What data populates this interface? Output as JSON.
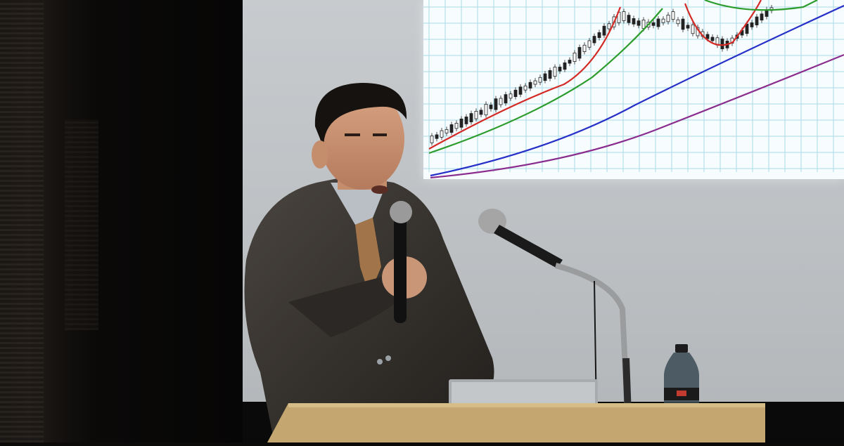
{
  "scene": {
    "description_free": true
  },
  "projection": {
    "grid": true,
    "series_colors": {
      "candles": "#222222",
      "ma_short": "#d42a25",
      "ma_medium": "#2c9c2c",
      "ma_long": "#2630c8",
      "ma_very_long": "#8a2c8e"
    }
  },
  "icons": {
    "microphone_handheld": "microphone-icon",
    "microphone_stand": "microphone-icon",
    "laptop": "laptop-icon",
    "bottle": "bottle-icon"
  }
}
